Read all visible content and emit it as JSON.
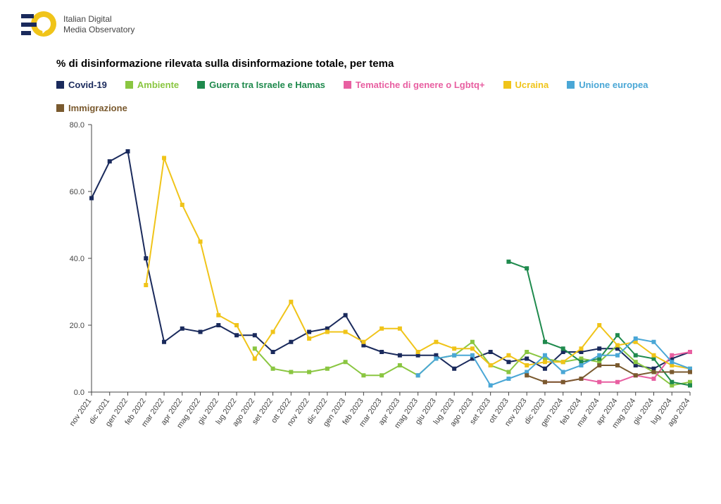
{
  "header": {
    "logo_line1": "Italian Digital",
    "logo_line2": "Media Observatory",
    "logo_colors": {
      "bars": "#1a2a5c",
      "circle": "#f0c419",
      "bubble": "#ffffff"
    }
  },
  "chart": {
    "type": "line",
    "title": "% di disinformazione rilevata sulla disinformazione totale, per tema",
    "title_fontsize": 15,
    "background_color": "#ffffff",
    "axis_color": "#444444",
    "axis_label_color": "#444444",
    "axis_label_fontsize": 11,
    "x_label_rotation_deg": -55,
    "ylim": [
      0,
      80
    ],
    "ytick_step": 20,
    "ytick_decimals": 1,
    "marker": "square",
    "marker_size": 6,
    "line_width": 2,
    "categories": [
      "nov 2021",
      "dic 2021",
      "gen 2022",
      "feb 2022",
      "mar 2022",
      "apr 2022",
      "mag 2022",
      "giu 2022",
      "lug 2022",
      "ago 2022",
      "set 2022",
      "ott 2022",
      "nov 2022",
      "dic 2022",
      "gen 2023",
      "feb 2023",
      "mar 2023",
      "apr 2023",
      "mag 2023",
      "giu 2023",
      "lug 2023",
      "ago 2023",
      "set 2023",
      "ott 2023",
      "nov 2023",
      "dic 2023",
      "gen 2024",
      "feb 2024",
      "mar 2024",
      "apr 2024",
      "mag 2024",
      "giu 2024",
      "lug 2024",
      "ago 2024"
    ],
    "legend_order": [
      "covid",
      "ambiente",
      "israele",
      "lgbtq",
      "ucraina",
      "ue",
      "immigrazione"
    ],
    "series": {
      "covid": {
        "label": "Covid-19",
        "color": "#1a2a5c",
        "values": [
          58,
          69,
          72,
          40,
          15,
          19,
          18,
          20,
          17,
          17,
          12,
          15,
          18,
          19,
          23,
          14,
          12,
          11,
          11,
          11,
          7,
          10,
          12,
          9,
          10,
          7,
          12,
          12,
          13,
          13,
          8,
          7,
          10,
          12
        ]
      },
      "ambiente": {
        "label": "Ambiente",
        "color": "#8ac641",
        "values": [
          null,
          null,
          null,
          null,
          null,
          null,
          null,
          null,
          null,
          13,
          7,
          6,
          6,
          7,
          9,
          5,
          5,
          8,
          5,
          10,
          11,
          15,
          8,
          6,
          12,
          10,
          9,
          10,
          9,
          14,
          9,
          6,
          2,
          3
        ]
      },
      "israele": {
        "label": "Guerra tra Israele e Hamas",
        "color": "#1f8a4d",
        "values": [
          null,
          null,
          null,
          null,
          null,
          null,
          null,
          null,
          null,
          null,
          null,
          null,
          null,
          null,
          null,
          null,
          null,
          null,
          null,
          null,
          null,
          null,
          null,
          39,
          37,
          15,
          13,
          9,
          10,
          17,
          11,
          10,
          3,
          2
        ]
      },
      "lgbtq": {
        "label": "Tematiche di genere o Lgbtq+",
        "color": "#e85fa1",
        "values": [
          null,
          null,
          null,
          null,
          null,
          null,
          null,
          null,
          null,
          null,
          null,
          null,
          null,
          null,
          null,
          null,
          null,
          null,
          null,
          null,
          null,
          null,
          null,
          null,
          null,
          3,
          3,
          4,
          3,
          3,
          5,
          4,
          11,
          12
        ]
      },
      "ucraina": {
        "label": "Ucraina",
        "color": "#f0c419",
        "values": [
          null,
          null,
          null,
          32,
          70,
          56,
          45,
          23,
          20,
          10,
          18,
          27,
          16,
          18,
          18,
          15,
          19,
          19,
          12,
          15,
          13,
          13,
          8,
          11,
          8,
          9,
          9,
          13,
          20,
          14,
          15,
          11,
          8,
          7
        ]
      },
      "ue": {
        "label": "Unione europea",
        "color": "#4aa7d6",
        "values": [
          null,
          null,
          null,
          null,
          null,
          null,
          null,
          null,
          null,
          null,
          null,
          null,
          null,
          null,
          null,
          null,
          null,
          null,
          5,
          10,
          11,
          11,
          2,
          4,
          6,
          11,
          6,
          8,
          11,
          11,
          16,
          15,
          9,
          7
        ]
      },
      "immigrazione": {
        "label": "Immigrazione",
        "color": "#7a5a2f",
        "values": [
          null,
          null,
          null,
          null,
          null,
          null,
          null,
          null,
          null,
          null,
          null,
          null,
          null,
          null,
          null,
          null,
          null,
          null,
          null,
          null,
          null,
          null,
          null,
          null,
          5,
          3,
          3,
          4,
          8,
          8,
          5,
          6,
          6,
          6
        ]
      }
    }
  }
}
